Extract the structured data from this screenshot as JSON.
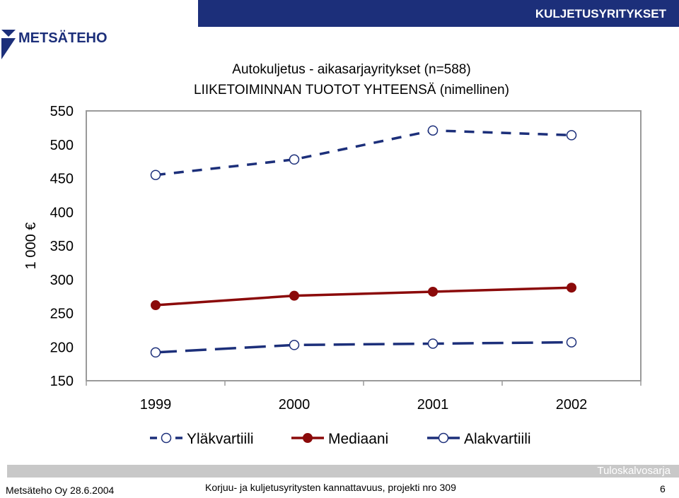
{
  "header": {
    "title": "KULJETUSYRITYKSET"
  },
  "logo": {
    "text": "METSÄTEHO"
  },
  "footer": {
    "band_label": "Tuloskalvosarja",
    "left": "Metsäteho Oy 28.6.2004",
    "center": "Korjuu- ja kuljetusyritysten kannattavuus, projekti nro 309",
    "page": "6"
  },
  "colors": {
    "navy": "#1c2f7a",
    "median": "#8b0a0a",
    "footer_band": "#c8c8c8"
  },
  "chart_data": {
    "type": "line",
    "title": "Autokuljetus - aikasarjayritykset (n=588)",
    "subtitle": "LIIKETOIMINNAN TUOTOT YHTEENSÄ (nimellinen)",
    "ylabel": "1 000 €",
    "xlabel": "",
    "ylim": [
      150,
      550
    ],
    "yticks": [
      150,
      200,
      250,
      300,
      350,
      400,
      450,
      500,
      550
    ],
    "categories": [
      "1999",
      "2000",
      "2001",
      "2002"
    ],
    "series": [
      {
        "name": "Yläkvartiili",
        "values": [
          455,
          478,
          521,
          514
        ]
      },
      {
        "name": "Mediaani",
        "values": [
          262,
          276,
          282,
          288
        ]
      },
      {
        "name": "Alakvartiili",
        "values": [
          192,
          203,
          205,
          207
        ]
      }
    ],
    "grid": false,
    "legend": "bottom"
  }
}
